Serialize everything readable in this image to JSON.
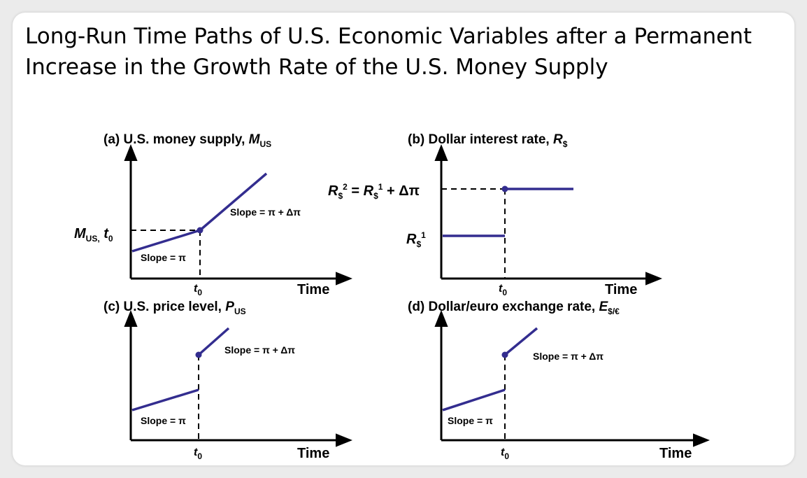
{
  "slide_title": {
    "line1": "Long-Run Time Paths of U.S. Economic Variables after a Permanent",
    "line2": "Increase in the Growth Rate of the U.S. Money Supply"
  },
  "colors": {
    "line": "#332d8f",
    "axis": "#000000"
  },
  "panels": {
    "a": {
      "title": "(a) U.S. money supply, ",
      "title_var": "M",
      "title_sub": "US",
      "y_marker": "M",
      "y_marker_sub": "US,",
      "y_marker_t": "t",
      "y_marker_t_sub": "0",
      "x_tick": "t",
      "x_tick_sub": "0",
      "x_label": "Time",
      "slope_before": "Slope = π",
      "slope_after": "Slope = π + Δπ"
    },
    "b": {
      "title": "(b) Dollar interest rate, ",
      "title_var": "R",
      "title_sub": "$",
      "r2_label_r": "R",
      "r2_label_sub": "$",
      "r2_label_sup": "2",
      "r2_label_eq": " = ",
      "r2_label_r1": "R",
      "r2_label_r1_sub": "$",
      "r2_label_r1_sup": "1",
      "r2_label_tail": " + Δπ",
      "r1_label_r": "R",
      "r1_label_sub": "$",
      "r1_label_sup": "1",
      "x_tick": "t",
      "x_tick_sub": "0",
      "x_label": "Time"
    },
    "c": {
      "title": "(c) U.S. price level, ",
      "title_var": "P",
      "title_sub": "US",
      "x_tick": "t",
      "x_tick_sub": "0",
      "x_label": "Time",
      "slope_before": "Slope = π",
      "slope_after": "Slope = π + Δπ"
    },
    "d": {
      "title": "(d) Dollar/euro exchange rate, ",
      "title_var": "E",
      "title_sub": "$/€",
      "x_tick": "t",
      "x_tick_sub": "0",
      "x_label": "Time",
      "slope_before": "Slope = π",
      "slope_after": "Slope = π + Δπ"
    }
  }
}
